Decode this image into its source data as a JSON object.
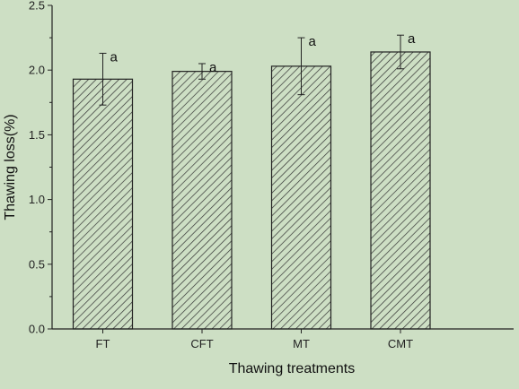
{
  "chart_data": {
    "type": "bar",
    "categories": [
      "FT",
      "CFT",
      "MT",
      "CMT"
    ],
    "values": [
      1.93,
      1.99,
      2.03,
      2.14
    ],
    "errors": [
      0.2,
      0.06,
      0.22,
      0.13
    ],
    "significance_labels": [
      "a",
      "a",
      "a",
      "a"
    ],
    "xlabel": "Thawing treatments",
    "ylabel": "Thawing loss(%)",
    "ylim": [
      0,
      2.5
    ],
    "yticks": [
      "0.0",
      "0.5",
      "1.0",
      "1.5",
      "2.0",
      "2.5"
    ],
    "bar_fill": "#cddfc4",
    "hatch_color": "#333333",
    "grid": false,
    "legend": "none"
  }
}
